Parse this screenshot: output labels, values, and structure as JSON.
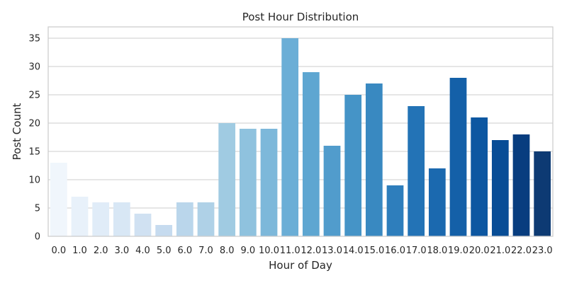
{
  "chart_data": {
    "type": "bar",
    "title": "Post Hour Distribution",
    "xlabel": "Hour of Day",
    "ylabel": "Post Count",
    "categories": [
      "0.0",
      "1.0",
      "2.0",
      "3.0",
      "4.0",
      "5.0",
      "6.0",
      "7.0",
      "8.0",
      "9.0",
      "10.0",
      "11.0",
      "12.0",
      "13.0",
      "14.0",
      "15.0",
      "16.0",
      "17.0",
      "18.0",
      "19.0",
      "20.0",
      "21.0",
      "22.0",
      "23.0"
    ],
    "values": [
      13,
      7,
      6,
      6,
      4,
      2,
      6,
      6,
      20,
      19,
      19,
      35,
      29,
      16,
      25,
      27,
      9,
      23,
      12,
      28,
      21,
      17,
      18,
      15
    ],
    "colors": [
      "#f0f6fc",
      "#e8f1fa",
      "#e0ecf8",
      "#d8e7f5",
      "#d0e1f2",
      "#c6dbef",
      "#bad6eb",
      "#afd1e7",
      "#a0cbe2",
      "#8fc2de",
      "#7db8da",
      "#6baed6",
      "#5ea6d1",
      "#519ccc",
      "#4594c7",
      "#3989c1",
      "#2e7ebc",
      "#2373b6",
      "#1b69af",
      "#1460a8",
      "#0d57a1",
      "#084d96",
      "#083d7f",
      "#0d3a73"
    ],
    "ylim": [
      0,
      37
    ],
    "yticks": [
      0,
      5,
      10,
      15,
      20,
      25,
      30,
      35
    ],
    "grid": true
  }
}
